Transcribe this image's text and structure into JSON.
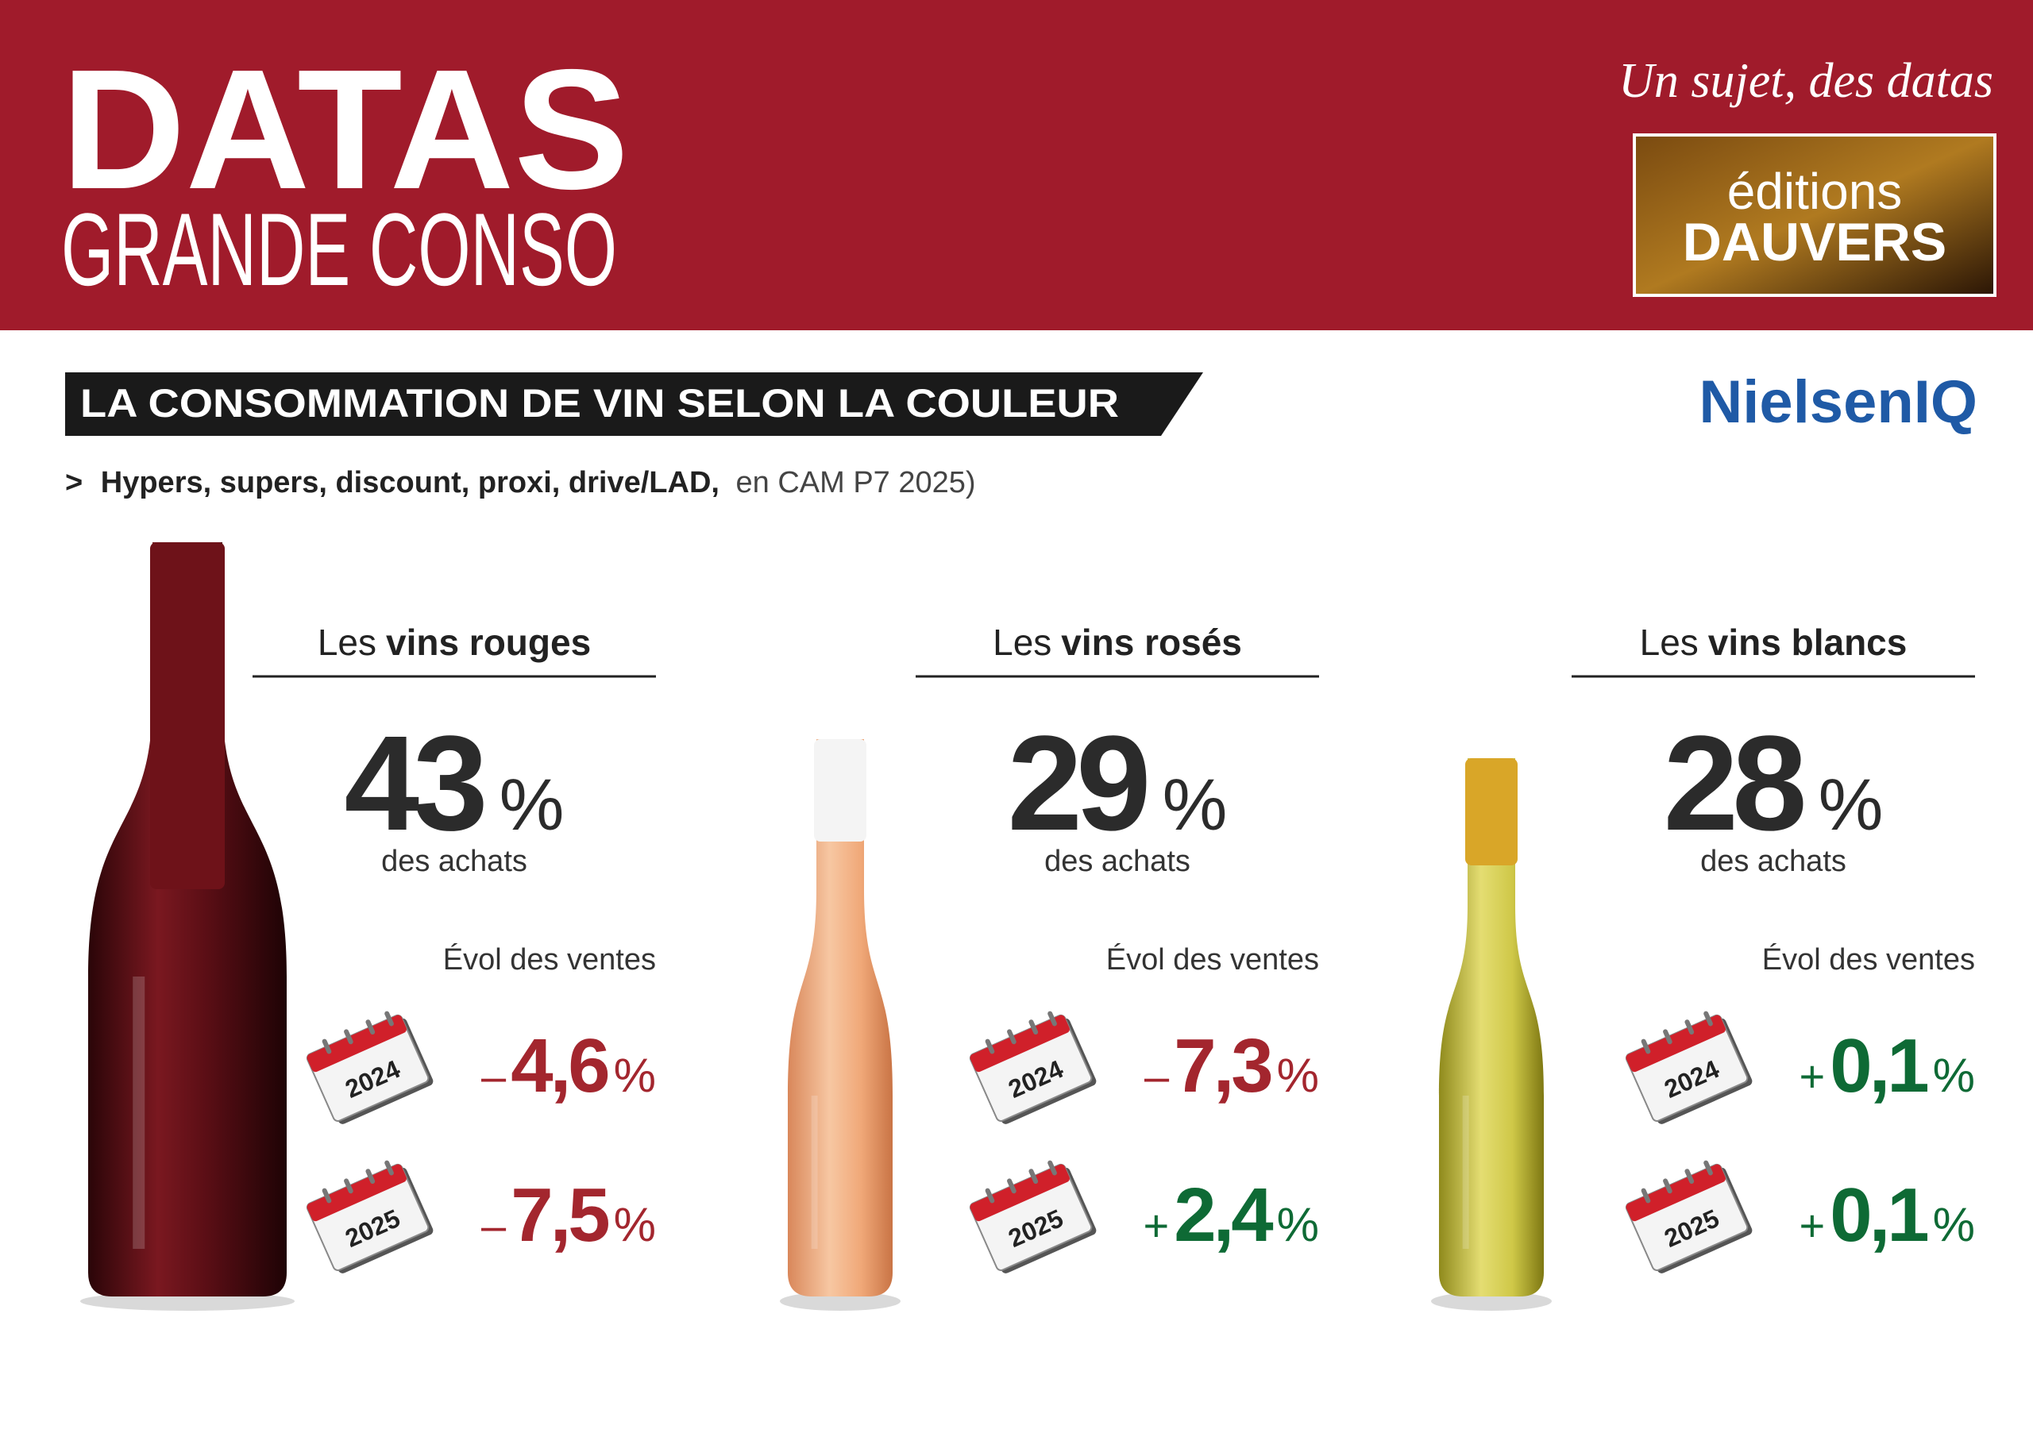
{
  "header": {
    "title": "DATAS",
    "subtitle": "GRANDE CONSO",
    "tagline": "Un sujet, des datas",
    "logo": {
      "line1": "éditions",
      "line2": "DAUVERS"
    }
  },
  "section": {
    "title": "LA CONSOMMATION DE VIN SELON LA COULEUR",
    "source": "NielsenIQ",
    "subtitle": {
      "marker": ">",
      "bold": "Hypers, supers, discount, proxi, drive/LAD,",
      "normal": "en CAM P7 2025)"
    }
  },
  "panels": [
    {
      "prefix": "Les",
      "name": "vins rouges",
      "share": "43",
      "unit": "%",
      "share_label": "des achats",
      "evol_title": "Évol des ventes",
      "evolutions": [
        {
          "year": "2024",
          "sign": "–",
          "value": "4,6",
          "unit": "%"
        },
        {
          "year": "2025",
          "sign": "–",
          "value": "7,5",
          "unit": "%"
        }
      ]
    },
    {
      "prefix": "Les",
      "name": "vins rosés",
      "share": "29",
      "unit": "%",
      "share_label": "des achats",
      "evol_title": "Évol des ventes",
      "evolutions": [
        {
          "year": "2024",
          "sign": "–",
          "value": "7,3",
          "unit": "%"
        },
        {
          "year": "2025",
          "sign": "+",
          "value": "2,4",
          "unit": "%"
        }
      ]
    },
    {
      "prefix": "Les",
      "name": "vins blancs",
      "share": "28",
      "unit": "%",
      "share_label": "des achats",
      "evol_title": "Évol des ventes",
      "evolutions": [
        {
          "year": "2024",
          "sign": "+",
          "value": "0,1",
          "unit": "%"
        },
        {
          "year": "2025",
          "sign": "+",
          "value": "0,1",
          "unit": "%"
        }
      ]
    }
  ]
}
